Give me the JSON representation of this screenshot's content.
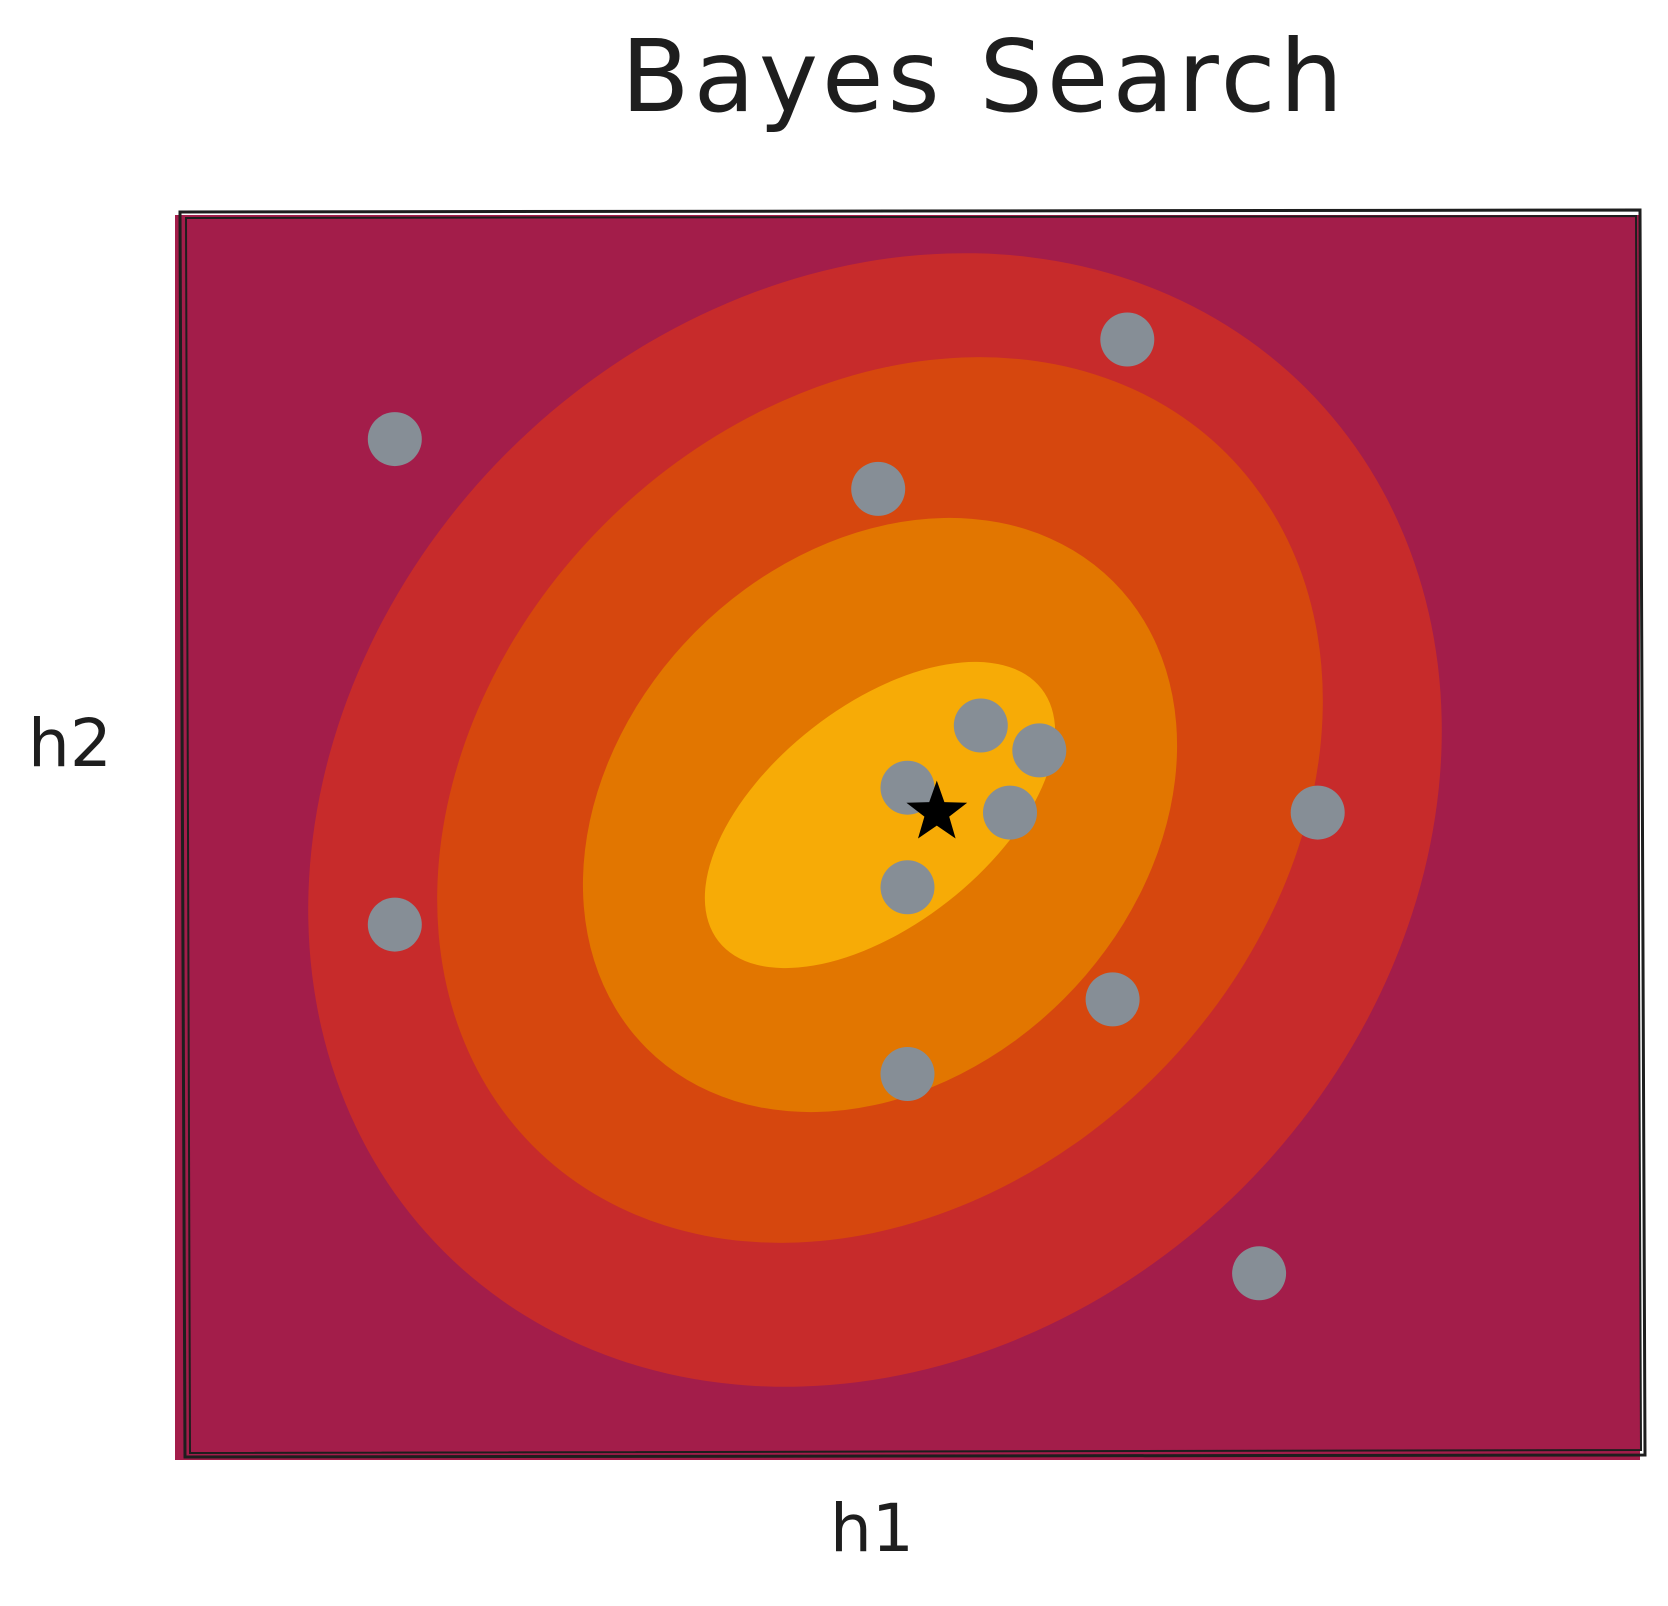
{
  "title": "Bayes Search",
  "axes": {
    "x_label": "h1",
    "y_label": "h2"
  },
  "colors": {
    "background": "#a31d4a",
    "contour_outer": "#c72b2b",
    "contour_mid": "#d6470e",
    "contour_inner": "#e27600",
    "contour_core": "#f7ab06",
    "sample_point": "#868e96",
    "optimum": "#000000",
    "frame": "#1e1e1e"
  },
  "optimum_icon": "star-icon",
  "samples": [
    {
      "h1": 0.15,
      "h2": 0.82
    },
    {
      "h1": 0.65,
      "h2": 0.9
    },
    {
      "h1": 0.48,
      "h2": 0.78
    },
    {
      "h1": 0.5,
      "h2": 0.54
    },
    {
      "h1": 0.55,
      "h2": 0.59
    },
    {
      "h1": 0.59,
      "h2": 0.57
    },
    {
      "h1": 0.57,
      "h2": 0.52
    },
    {
      "h1": 0.5,
      "h2": 0.46
    },
    {
      "h1": 0.78,
      "h2": 0.52
    },
    {
      "h1": 0.15,
      "h2": 0.43
    },
    {
      "h1": 0.64,
      "h2": 0.37
    },
    {
      "h1": 0.5,
      "h2": 0.31
    },
    {
      "h1": 0.74,
      "h2": 0.15
    }
  ],
  "optimum": {
    "h1": 0.52,
    "h2": 0.52
  }
}
